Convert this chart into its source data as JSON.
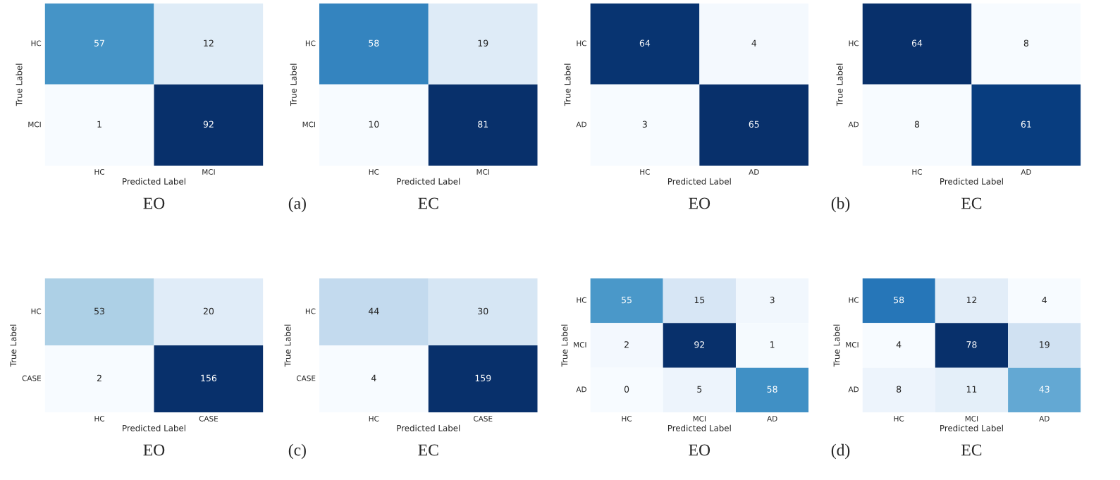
{
  "chart_data": [
    {
      "type": "heatmap",
      "categories": [
        "HC",
        "MCI"
      ],
      "y_categories": [
        "HC",
        "MCI"
      ],
      "cells": [
        [
          57,
          12
        ],
        [
          1,
          92
        ]
      ],
      "data_labels": true,
      "xlabel": "Predicted Label",
      "ylabel": "True Label",
      "annotations": [
        "EO"
      ]
    },
    {
      "type": "heatmap",
      "categories": [
        "HC",
        "MCI"
      ],
      "y_categories": [
        "HC",
        "MCI"
      ],
      "cells": [
        [
          58,
          19
        ],
        [
          10,
          81
        ]
      ],
      "data_labels": true,
      "xlabel": "Predicted Label",
      "ylabel": "True Label",
      "annotations": [
        "(a)",
        "EC"
      ]
    },
    {
      "type": "heatmap",
      "categories": [
        "HC",
        "AD"
      ],
      "y_categories": [
        "HC",
        "AD"
      ],
      "cells": [
        [
          64,
          4
        ],
        [
          3,
          65
        ]
      ],
      "data_labels": true,
      "xlabel": "Predicted Label",
      "ylabel": "True Label",
      "annotations": [
        "EO"
      ]
    },
    {
      "type": "heatmap",
      "categories": [
        "HC",
        "AD"
      ],
      "y_categories": [
        "HC",
        "AD"
      ],
      "cells": [
        [
          64,
          8
        ],
        [
          8,
          61
        ]
      ],
      "data_labels": true,
      "xlabel": "Predicted Label",
      "ylabel": "True Label",
      "annotations": [
        "(b)",
        "EC"
      ]
    },
    {
      "type": "heatmap",
      "categories": [
        "HC",
        "CASE"
      ],
      "y_categories": [
        "HC",
        "CASE"
      ],
      "cells": [
        [
          53,
          20
        ],
        [
          2,
          156
        ]
      ],
      "data_labels": true,
      "xlabel": "Predicted Label",
      "ylabel": "True Label",
      "annotations": [
        "EO"
      ]
    },
    {
      "type": "heatmap",
      "categories": [
        "HC",
        "CASE"
      ],
      "y_categories": [
        "HC",
        "CASE"
      ],
      "cells": [
        [
          44,
          30
        ],
        [
          4,
          159
        ]
      ],
      "data_labels": true,
      "xlabel": "Predicted Label",
      "ylabel": "True Label",
      "annotations": [
        "(c)",
        "EC"
      ]
    },
    {
      "type": "heatmap",
      "categories": [
        "HC",
        "MCI",
        "AD"
      ],
      "y_categories": [
        "HC",
        "MCI",
        "AD"
      ],
      "cells": [
        [
          55,
          15,
          3
        ],
        [
          2,
          92,
          1
        ],
        [
          0,
          5,
          58
        ]
      ],
      "data_labels": true,
      "xlabel": "Predicted Label",
      "ylabel": "True Label",
      "annotations": [
        "EO"
      ]
    },
    {
      "type": "heatmap",
      "categories": [
        "HC",
        "MCI",
        "AD"
      ],
      "y_categories": [
        "HC",
        "MCI",
        "AD"
      ],
      "cells": [
        [
          58,
          12,
          4
        ],
        [
          4,
          78,
          19
        ],
        [
          8,
          11,
          43
        ]
      ],
      "data_labels": true,
      "xlabel": "Predicted Label",
      "ylabel": "True Label",
      "annotations": [
        "(d)",
        "EC"
      ]
    }
  ]
}
